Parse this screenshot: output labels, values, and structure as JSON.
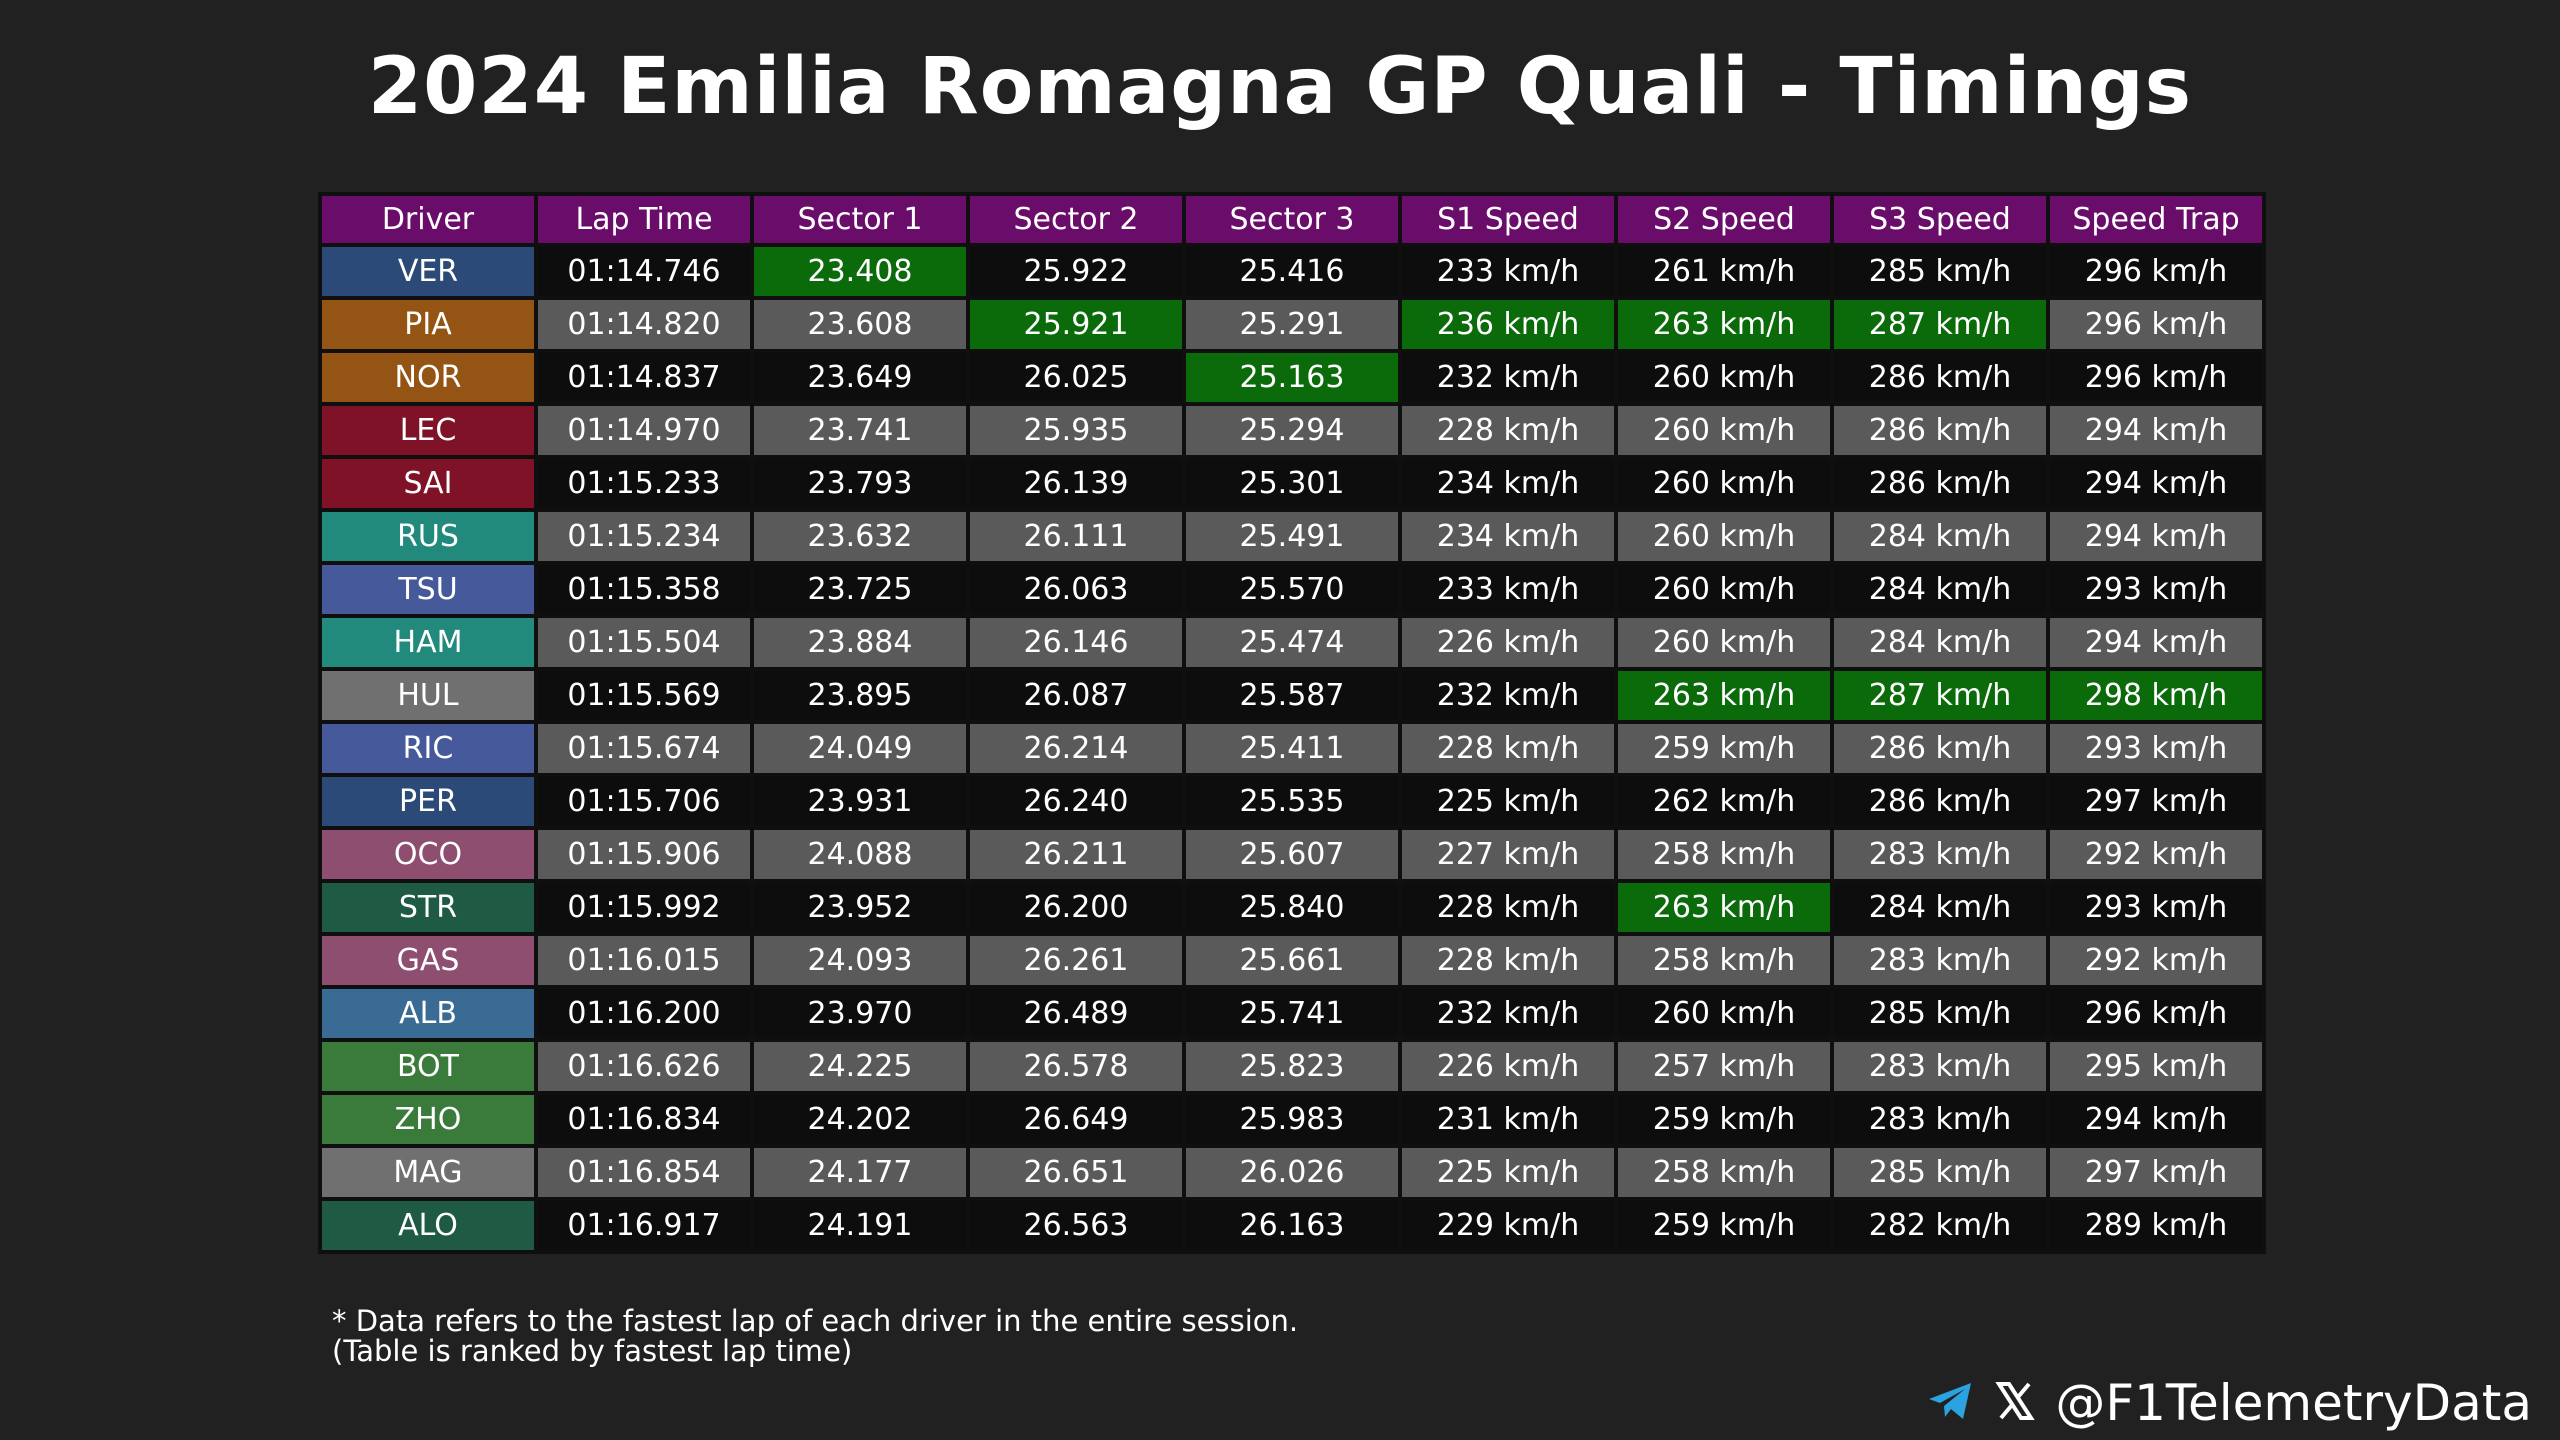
{
  "header": {
    "title": "2024 Emilia Romagna GP Quali - Timings"
  },
  "footer": {
    "note_line1": "* Data refers to the fastest lap of each driver in the entire session.",
    "note_line2": "(Table is ranked by fastest lap time)",
    "handle": "@F1TelemetryData",
    "watermark": "@F1TelemetryData"
  },
  "icons": {
    "telegram": "telegram-icon",
    "x": "x-logo-icon"
  },
  "colors": {
    "background": "#212121",
    "header_bg": "#6a0d6a",
    "best_bg": "#0b6b0b",
    "row_dark": "#0d0d0d",
    "row_grey": "#5a5a5a"
  },
  "chart_data": {
    "type": "table",
    "title": "2024 Emilia Romagna GP Quali - Timings",
    "columns": [
      "Driver",
      "Lap Time",
      "Sector 1",
      "Sector 2",
      "Sector 3",
      "S1 Speed",
      "S2 Speed",
      "S3 Speed",
      "Speed Trap"
    ],
    "rows": [
      {
        "driver": "VER",
        "color": "#2b4a78",
        "cells": [
          "01:14.746",
          "23.408",
          "25.922",
          "25.416",
          "233 km/h",
          "261 km/h",
          "285 km/h",
          "296 km/h"
        ],
        "best": [
          1
        ]
      },
      {
        "driver": "PIA",
        "color": "#945413",
        "cells": [
          "01:14.820",
          "23.608",
          "25.921",
          "25.291",
          "236 km/h",
          "263 km/h",
          "287 km/h",
          "296 km/h"
        ],
        "best": [
          2,
          4,
          5,
          6
        ]
      },
      {
        "driver": "NOR",
        "color": "#945413",
        "cells": [
          "01:14.837",
          "23.649",
          "26.025",
          "25.163",
          "232 km/h",
          "260 km/h",
          "286 km/h",
          "296 km/h"
        ],
        "best": [
          3
        ]
      },
      {
        "driver": "LEC",
        "color": "#7f1226",
        "cells": [
          "01:14.970",
          "23.741",
          "25.935",
          "25.294",
          "228 km/h",
          "260 km/h",
          "286 km/h",
          "294 km/h"
        ],
        "best": []
      },
      {
        "driver": "SAI",
        "color": "#7f1226",
        "cells": [
          "01:15.233",
          "23.793",
          "26.139",
          "25.301",
          "234 km/h",
          "260 km/h",
          "286 km/h",
          "294 km/h"
        ],
        "best": []
      },
      {
        "driver": "RUS",
        "color": "#228a7c",
        "cells": [
          "01:15.234",
          "23.632",
          "26.111",
          "25.491",
          "234 km/h",
          "260 km/h",
          "284 km/h",
          "294 km/h"
        ],
        "best": []
      },
      {
        "driver": "TSU",
        "color": "#46599a",
        "cells": [
          "01:15.358",
          "23.725",
          "26.063",
          "25.570",
          "233 km/h",
          "260 km/h",
          "284 km/h",
          "293 km/h"
        ],
        "best": []
      },
      {
        "driver": "HAM",
        "color": "#228a7c",
        "cells": [
          "01:15.504",
          "23.884",
          "26.146",
          "25.474",
          "226 km/h",
          "260 km/h",
          "284 km/h",
          "294 km/h"
        ],
        "best": []
      },
      {
        "driver": "HUL",
        "color": "#707070",
        "cells": [
          "01:15.569",
          "23.895",
          "26.087",
          "25.587",
          "232 km/h",
          "263 km/h",
          "287 km/h",
          "298 km/h"
        ],
        "best": [
          5,
          6,
          7
        ]
      },
      {
        "driver": "RIC",
        "color": "#46599a",
        "cells": [
          "01:15.674",
          "24.049",
          "26.214",
          "25.411",
          "228 km/h",
          "259 km/h",
          "286 km/h",
          "293 km/h"
        ],
        "best": []
      },
      {
        "driver": "PER",
        "color": "#2b4a78",
        "cells": [
          "01:15.706",
          "23.931",
          "26.240",
          "25.535",
          "225 km/h",
          "262 km/h",
          "286 km/h",
          "297 km/h"
        ],
        "best": []
      },
      {
        "driver": "OCO",
        "color": "#8e4e6f",
        "cells": [
          "01:15.906",
          "24.088",
          "26.211",
          "25.607",
          "227 km/h",
          "258 km/h",
          "283 km/h",
          "292 km/h"
        ],
        "best": []
      },
      {
        "driver": "STR",
        "color": "#1f5a45",
        "cells": [
          "01:15.992",
          "23.952",
          "26.200",
          "25.840",
          "228 km/h",
          "263 km/h",
          "284 km/h",
          "293 km/h"
        ],
        "best": [
          5
        ]
      },
      {
        "driver": "GAS",
        "color": "#8e4e6f",
        "cells": [
          "01:16.015",
          "24.093",
          "26.261",
          "25.661",
          "228 km/h",
          "258 km/h",
          "283 km/h",
          "292 km/h"
        ],
        "best": []
      },
      {
        "driver": "ALB",
        "color": "#3a6b94",
        "cells": [
          "01:16.200",
          "23.970",
          "26.489",
          "25.741",
          "232 km/h",
          "260 km/h",
          "285 km/h",
          "296 km/h"
        ],
        "best": []
      },
      {
        "driver": "BOT",
        "color": "#3a7a3a",
        "cells": [
          "01:16.626",
          "24.225",
          "26.578",
          "25.823",
          "226 km/h",
          "257 km/h",
          "283 km/h",
          "295 km/h"
        ],
        "best": []
      },
      {
        "driver": "ZHO",
        "color": "#3a7a3a",
        "cells": [
          "01:16.834",
          "24.202",
          "26.649",
          "25.983",
          "231 km/h",
          "259 km/h",
          "283 km/h",
          "294 km/h"
        ],
        "best": []
      },
      {
        "driver": "MAG",
        "color": "#707070",
        "cells": [
          "01:16.854",
          "24.177",
          "26.651",
          "26.026",
          "225 km/h",
          "258 km/h",
          "285 km/h",
          "297 km/h"
        ],
        "best": []
      },
      {
        "driver": "ALO",
        "color": "#1f5a45",
        "cells": [
          "01:16.917",
          "24.191",
          "26.563",
          "26.163",
          "229 km/h",
          "259 km/h",
          "282 km/h",
          "289 km/h"
        ],
        "best": []
      }
    ]
  }
}
